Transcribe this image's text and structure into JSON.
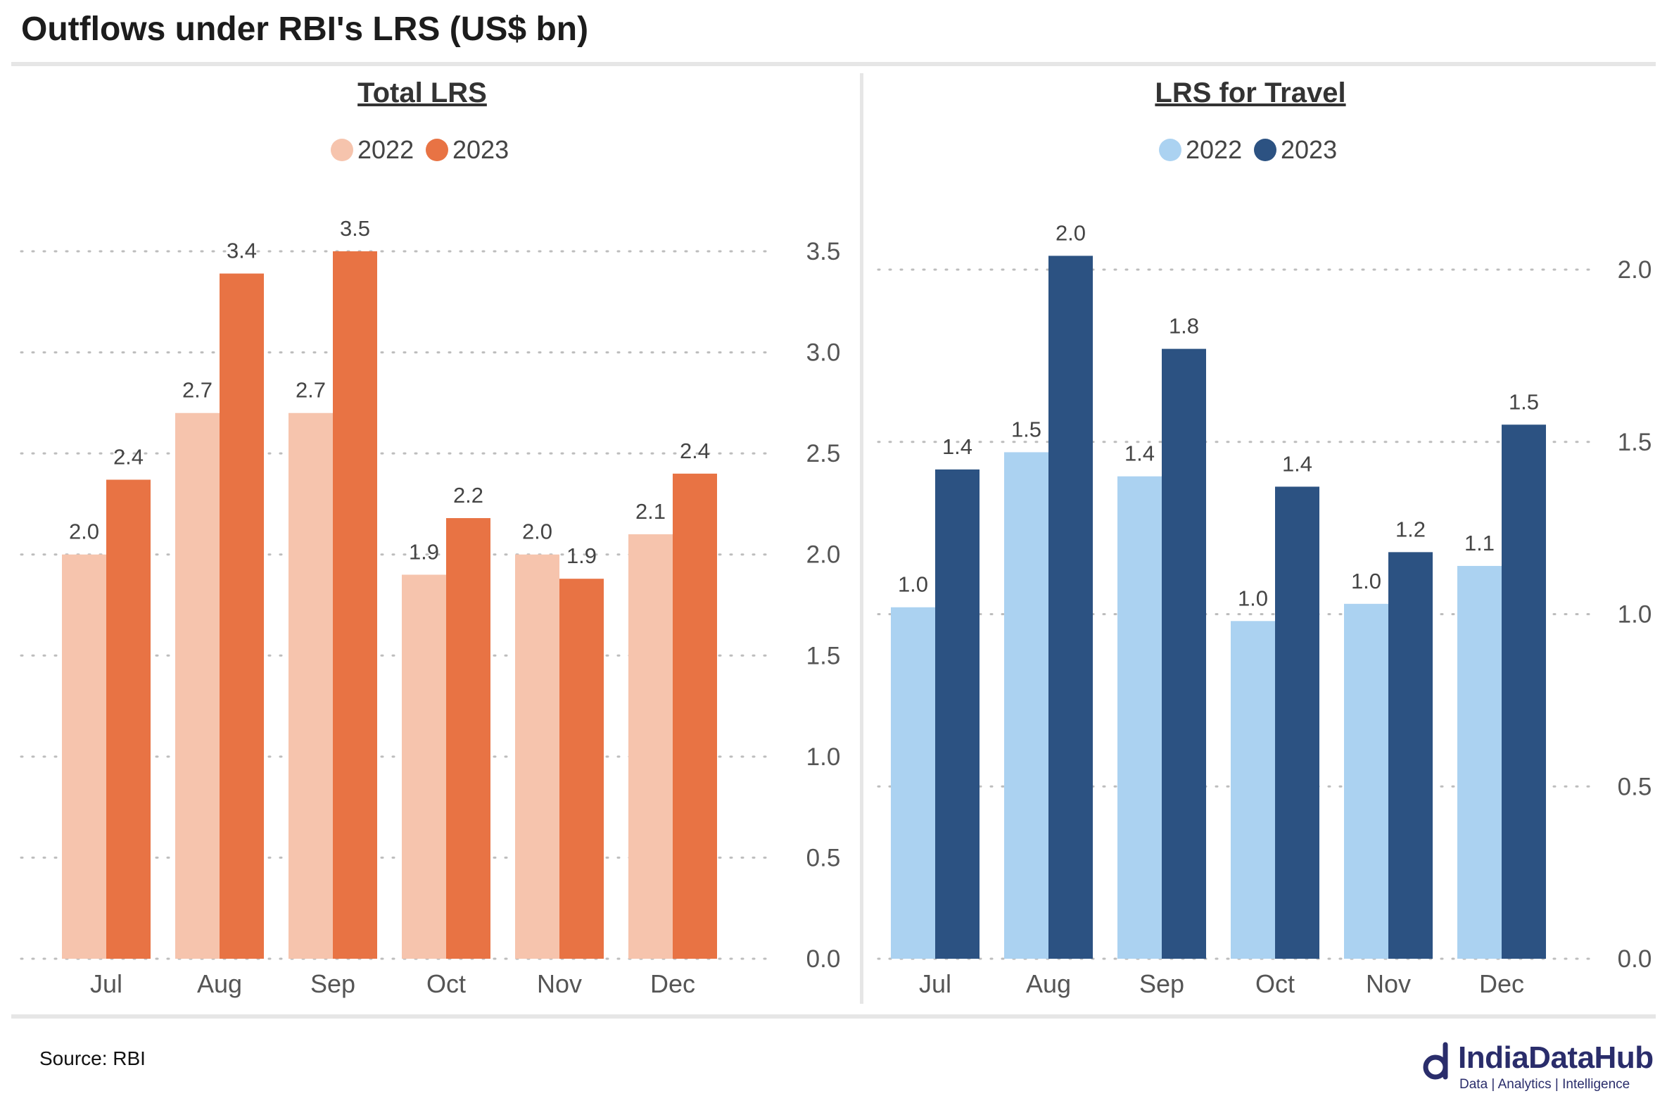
{
  "title": "Outflows under RBI's LRS (US$ bn)",
  "source": "Source: RBI",
  "logo": {
    "name": "IndiaDataHub",
    "tagline": "Data | Analytics | Intelligence",
    "color": "#2a2d6b"
  },
  "chart_data": [
    {
      "type": "bar",
      "title": "Total LRS",
      "categories": [
        "Jul",
        "Aug",
        "Sep",
        "Oct",
        "Nov",
        "Dec"
      ],
      "series": [
        {
          "name": "2022",
          "color": "#f6c4ad",
          "values": [
            2.0,
            2.7,
            2.7,
            1.9,
            2.0,
            2.1
          ],
          "labels": [
            "2.0",
            "2.7",
            "2.7",
            "1.9",
            "2.0",
            "2.1"
          ]
        },
        {
          "name": "2023",
          "color": "#e87344",
          "values": [
            2.37,
            3.39,
            3.5,
            2.18,
            1.88,
            2.4
          ],
          "labels": [
            "2.4",
            "3.4",
            "3.5",
            "2.2",
            "1.9",
            "2.4"
          ]
        }
      ],
      "ylim": [
        0,
        3.5
      ],
      "yticks": [
        "0.0",
        "0.5",
        "1.0",
        "1.5",
        "2.0",
        "2.5",
        "3.0",
        "3.5"
      ],
      "ytick_values": [
        0,
        0.5,
        1.0,
        1.5,
        2.0,
        2.5,
        3.0,
        3.5
      ],
      "legend": "top-center",
      "y_axis_side": "right",
      "grid": "dotted horizontal"
    },
    {
      "type": "bar",
      "title": "LRS for Travel",
      "categories": [
        "Jul",
        "Aug",
        "Sep",
        "Oct",
        "Nov",
        "Dec"
      ],
      "series": [
        {
          "name": "2022",
          "color": "#abd2f1",
          "values": [
            1.02,
            1.47,
            1.4,
            0.98,
            1.03,
            1.14
          ],
          "labels": [
            "1.0",
            "1.5",
            "1.4",
            "1.0",
            "1.0",
            "1.1"
          ]
        },
        {
          "name": "2023",
          "color": "#2c5282",
          "values": [
            1.42,
            2.04,
            1.77,
            1.37,
            1.18,
            1.55
          ],
          "labels": [
            "1.4",
            "2.0",
            "1.8",
            "1.4",
            "1.2",
            "1.5"
          ]
        }
      ],
      "ylim": [
        0,
        2.0
      ],
      "yticks": [
        "0.0",
        "0.5",
        "1.0",
        "1.5",
        "2.0"
      ],
      "ytick_values": [
        0,
        0.5,
        1.0,
        1.5,
        2.0
      ],
      "legend": "top-center",
      "y_axis_side": "right",
      "grid": "dotted horizontal"
    }
  ]
}
